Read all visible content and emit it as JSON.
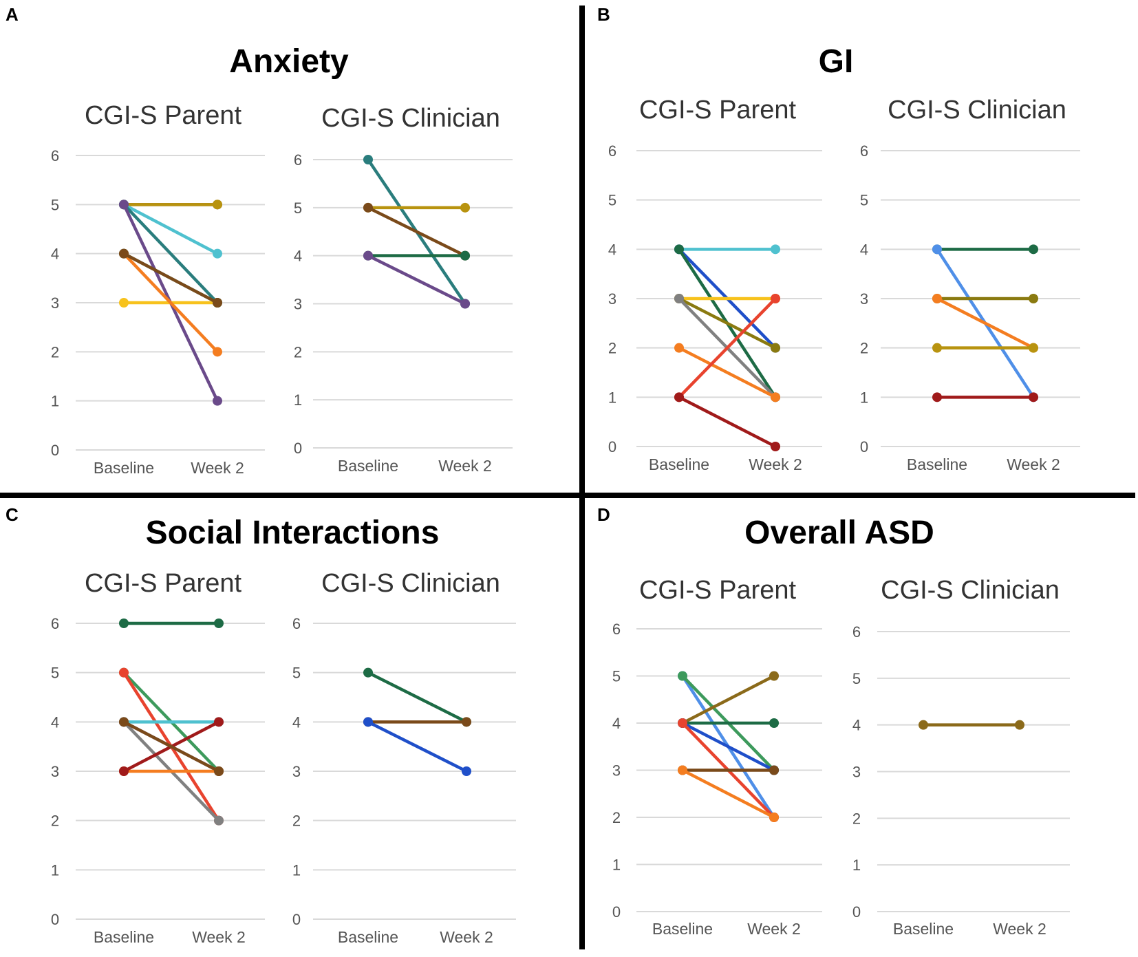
{
  "colors": {
    "teal": "#2a7d7d",
    "cyan": "#4fc1cf",
    "green": "#3d9a5c",
    "darkgreen": "#1d6b45",
    "olive": "#8a7a10",
    "gold": "#b8930f",
    "yellow": "#f7c21c",
    "orange": "#f47d20",
    "red": "#e8432e",
    "darkred": "#a01a1a",
    "brown": "#7a4a1a",
    "purple": "#6a4a8a",
    "blue": "#1f4fc9",
    "lightblue": "#4f8fe8",
    "gray": "#808080",
    "brownolive": "#8b6a1a"
  },
  "chart_data": [
    {
      "panel": "A",
      "title": "Anxiety",
      "charts": [
        {
          "subtitle": "CGI-S Parent",
          "type": "line",
          "categories": [
            "Baseline",
            "Week 2"
          ],
          "ylim": [
            0,
            6
          ],
          "yticks": [
            "0",
            "1",
            "2",
            "3",
            "4",
            "5",
            "6"
          ],
          "series": [
            {
              "color": "brown",
              "values": [
                5,
                5
              ]
            },
            {
              "color": "gold",
              "values": [
                5,
                5
              ]
            },
            {
              "color": "cyan",
              "values": [
                5,
                4
              ]
            },
            {
              "color": "teal",
              "values": [
                5,
                3
              ]
            },
            {
              "color": "purple",
              "values": [
                5,
                1
              ]
            },
            {
              "color": "yellow",
              "values": [
                3,
                3
              ]
            },
            {
              "color": "orange",
              "values": [
                4,
                2
              ]
            },
            {
              "color": "darkgreen",
              "values": [
                4,
                3
              ]
            },
            {
              "color": "brown",
              "values": [
                4,
                3
              ]
            }
          ]
        },
        {
          "subtitle": "CGI-S Clinician",
          "type": "line",
          "categories": [
            "Baseline",
            "Week 2"
          ],
          "ylim": [
            0,
            6
          ],
          "yticks": [
            "0",
            "1",
            "2",
            "3",
            "4",
            "5",
            "6"
          ],
          "series": [
            {
              "color": "teal",
              "values": [
                6,
                3
              ]
            },
            {
              "color": "gold",
              "values": [
                5,
                5
              ]
            },
            {
              "color": "brown",
              "values": [
                5,
                4
              ]
            },
            {
              "color": "darkgreen",
              "values": [
                4,
                4
              ]
            },
            {
              "color": "purple",
              "values": [
                4,
                3
              ]
            }
          ]
        }
      ]
    },
    {
      "panel": "B",
      "title": "GI",
      "charts": [
        {
          "subtitle": "CGI-S Parent",
          "type": "line",
          "categories": [
            "Baseline",
            "Week 2"
          ],
          "ylim": [
            0,
            6
          ],
          "yticks": [
            "0",
            "1",
            "2",
            "3",
            "4",
            "5",
            "6"
          ],
          "series": [
            {
              "color": "cyan",
              "values": [
                4,
                4
              ]
            },
            {
              "color": "blue",
              "values": [
                4,
                2
              ]
            },
            {
              "color": "darkgreen",
              "values": [
                4,
                1
              ]
            },
            {
              "color": "yellow",
              "values": [
                3,
                3
              ]
            },
            {
              "color": "olive",
              "values": [
                3,
                2
              ]
            },
            {
              "color": "gray",
              "values": [
                3,
                1
              ]
            },
            {
              "color": "orange",
              "values": [
                2,
                1
              ]
            },
            {
              "color": "red",
              "values": [
                1,
                3
              ]
            },
            {
              "color": "darkred",
              "values": [
                1,
                0
              ]
            }
          ]
        },
        {
          "subtitle": "CGI-S Clinician",
          "type": "line",
          "categories": [
            "Baseline",
            "Week 2"
          ],
          "ylim": [
            0,
            6
          ],
          "yticks": [
            "0",
            "1",
            "2",
            "3",
            "4",
            "5",
            "6"
          ],
          "series": [
            {
              "color": "darkgreen",
              "values": [
                4,
                4
              ]
            },
            {
              "color": "lightblue",
              "values": [
                4,
                1
              ]
            },
            {
              "color": "olive",
              "values": [
                3,
                3
              ]
            },
            {
              "color": "orange",
              "values": [
                3,
                2
              ]
            },
            {
              "color": "gold",
              "values": [
                2,
                2
              ]
            },
            {
              "color": "darkred",
              "values": [
                1,
                1
              ]
            }
          ]
        }
      ]
    },
    {
      "panel": "C",
      "title": "Social Interactions",
      "charts": [
        {
          "subtitle": "CGI-S Parent",
          "type": "line",
          "categories": [
            "Baseline",
            "Week 2"
          ],
          "ylim": [
            0,
            6
          ],
          "yticks": [
            "0",
            "1",
            "2",
            "3",
            "4",
            "5",
            "6"
          ],
          "series": [
            {
              "color": "darkgreen",
              "values": [
                6,
                6
              ]
            },
            {
              "color": "green",
              "values": [
                5,
                3
              ]
            },
            {
              "color": "red",
              "values": [
                5,
                2
              ]
            },
            {
              "color": "cyan",
              "values": [
                4,
                4
              ]
            },
            {
              "color": "purple",
              "values": [
                4,
                3
              ]
            },
            {
              "color": "gray",
              "values": [
                4,
                2
              ]
            },
            {
              "color": "orange",
              "values": [
                3,
                3
              ]
            },
            {
              "color": "darkred",
              "values": [
                3,
                4
              ]
            },
            {
              "color": "brown",
              "values": [
                4,
                3
              ]
            }
          ]
        },
        {
          "subtitle": "CGI-S Clinician",
          "type": "line",
          "categories": [
            "Baseline",
            "Week 2"
          ],
          "ylim": [
            0,
            6
          ],
          "yticks": [
            "0",
            "1",
            "2",
            "3",
            "4",
            "5",
            "6"
          ],
          "series": [
            {
              "color": "darkgreen",
              "values": [
                5,
                4
              ]
            },
            {
              "color": "brown",
              "values": [
                4,
                4
              ]
            },
            {
              "color": "blue",
              "values": [
                4,
                3
              ]
            }
          ]
        }
      ]
    },
    {
      "panel": "D",
      "title": "Overall ASD",
      "charts": [
        {
          "subtitle": "CGI-S Parent",
          "type": "line",
          "categories": [
            "Baseline",
            "Week 2"
          ],
          "ylim": [
            0,
            6
          ],
          "yticks": [
            "0",
            "1",
            "2",
            "3",
            "4",
            "5",
            "6"
          ],
          "series": [
            {
              "color": "lightblue",
              "values": [
                5,
                2
              ]
            },
            {
              "color": "green",
              "values": [
                5,
                3
              ]
            },
            {
              "color": "brownolive",
              "values": [
                4,
                5
              ]
            },
            {
              "color": "darkgreen",
              "values": [
                4,
                4
              ]
            },
            {
              "color": "blue",
              "values": [
                4,
                3
              ]
            },
            {
              "color": "red",
              "values": [
                4,
                2
              ]
            },
            {
              "color": "brown",
              "values": [
                3,
                3
              ]
            },
            {
              "color": "orange",
              "values": [
                3,
                2
              ]
            }
          ]
        },
        {
          "subtitle": "CGI-S Clinician",
          "type": "line",
          "categories": [
            "Baseline",
            "Week 2"
          ],
          "ylim": [
            0,
            6
          ],
          "yticks": [
            "0",
            "1",
            "2",
            "3",
            "4",
            "5",
            "6"
          ],
          "series": [
            {
              "color": "brownolive",
              "values": [
                4,
                4
              ]
            }
          ]
        }
      ]
    }
  ]
}
